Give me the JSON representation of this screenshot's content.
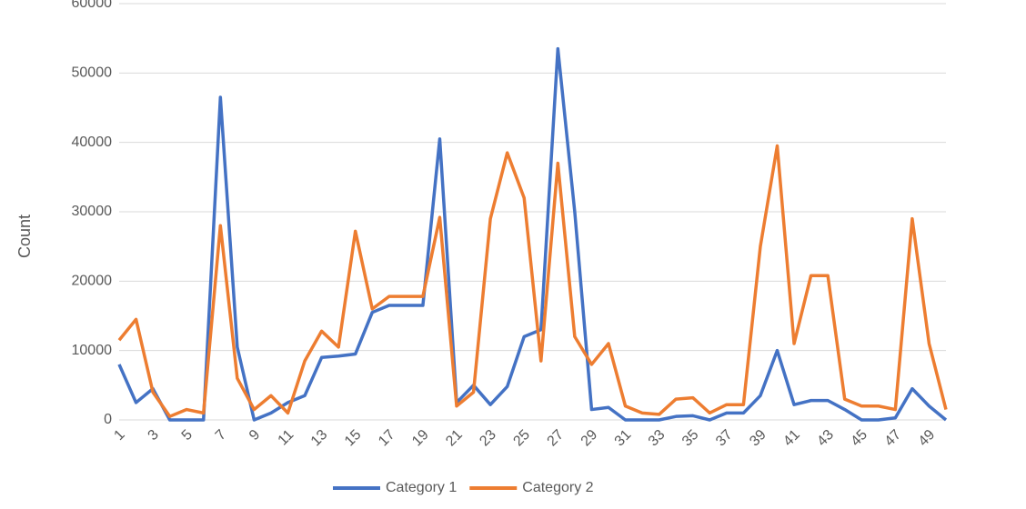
{
  "chart_data": {
    "type": "line",
    "y_label": "Count",
    "categories": [
      "1",
      null,
      "3",
      null,
      "5",
      null,
      "7",
      null,
      "9",
      null,
      "11",
      null,
      "13",
      null,
      "15",
      null,
      "17",
      null,
      "19",
      null,
      "21",
      null,
      "23",
      null,
      "25",
      null,
      "27",
      null,
      "29",
      null,
      "31",
      null,
      "33",
      null,
      "35",
      null,
      "37",
      null,
      "39",
      null,
      "41",
      null,
      "43",
      null,
      "45",
      null,
      "47",
      null,
      "49",
      null
    ],
    "series": [
      {
        "name": "Category 1",
        "color": "#4472c4",
        "values": [
          8000,
          2500,
          4500,
          0,
          0,
          0,
          46500,
          10500,
          0,
          1000,
          2500,
          3500,
          9000,
          9200,
          9500,
          15500,
          16500,
          16500,
          16500,
          40500,
          2500,
          5000,
          2200,
          4800,
          12000,
          13000,
          53500,
          30000,
          1500,
          1800,
          0,
          0,
          0,
          500,
          600,
          0,
          1000,
          1000,
          3500,
          10000,
          2200,
          2800,
          2800,
          1500,
          0,
          0,
          300,
          4500,
          2000,
          0
        ]
      },
      {
        "name": "Category 2",
        "color": "#ed7d31",
        "values": [
          11500,
          14500,
          4000,
          500,
          1500,
          1000,
          28000,
          6000,
          1500,
          3500,
          1000,
          8500,
          12800,
          10500,
          27200,
          16000,
          17800,
          17800,
          17800,
          29200,
          2000,
          4000,
          29000,
          38500,
          32000,
          8500,
          37000,
          12000,
          8000,
          11000,
          2000,
          1000,
          800,
          3000,
          3200,
          1000,
          2200,
          2200,
          25000,
          39500,
          11000,
          20800,
          20800,
          3000,
          2000,
          2000,
          1500,
          29000,
          11000,
          1500
        ]
      }
    ],
    "ylim": [
      0,
      60000
    ],
    "yticks": [
      0,
      10000,
      20000,
      30000,
      40000,
      50000,
      60000
    ],
    "grid": true,
    "legend": "bottom"
  }
}
